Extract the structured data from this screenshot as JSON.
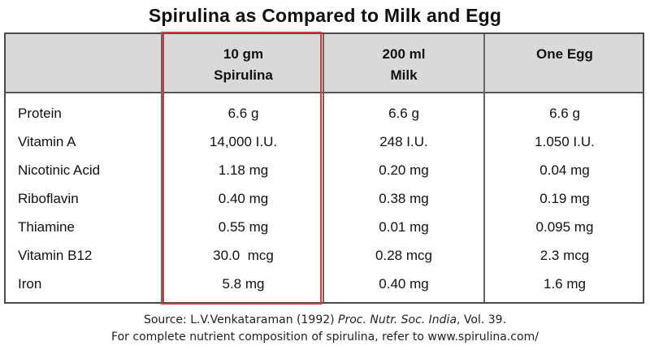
{
  "title": "Spirulina as Compared to Milk and Egg",
  "columns": [
    {
      "line1": "10 gm",
      "line2": "Spirulina"
    },
    {
      "line1": "200 ml",
      "line2": "Milk"
    },
    {
      "line1": "One Egg",
      "line2": ""
    }
  ],
  "rows": [
    {
      "label": "Protein",
      "v1": "6.6 g",
      "v2": "6.6 g",
      "v3": "6.6 g"
    },
    {
      "label": "Vitamin A",
      "v1": "14,000 I.U.",
      "v2": "248 I.U.",
      "v3": "1.050 I.U."
    },
    {
      "label": "Nicotinic Acid",
      "v1": "1.18 mg",
      "v2": "0.20 mg",
      "v3": "0.04 mg"
    },
    {
      "label": "Riboflavin",
      "v1": "0.40 mg",
      "v2": "0.38 mg",
      "v3": "0.19 mg"
    },
    {
      "label": "Thiamine",
      "v1": "0.55 mg",
      "v2": "0.01 mg",
      "v3": "0.095 mg"
    },
    {
      "label": "Vitamin B12",
      "v1": "30.0  mcg",
      "v2": "0.28 mcg",
      "v3": "2.3 mcg"
    },
    {
      "label": "Iron",
      "v1": "5.8 mg",
      "v2": "0.40 mg",
      "v3": "1.6 mg"
    }
  ],
  "source": {
    "prefix": "Source: L.V.Venkataraman (1992) ",
    "journal": "Proc. Nutr. Soc. India",
    "suffix": ", Vol. 39.",
    "note": "For complete nutrient composition of spirulina, refer to www.spirulina.com/"
  },
  "colors": {
    "highlight": "#d23b3b",
    "header_bg": "#d9d9d9"
  }
}
